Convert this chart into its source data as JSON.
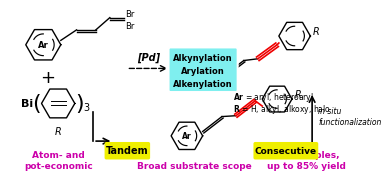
{
  "bg_color": "#ffffff",
  "cyan_box_color": "#7FEFEF",
  "yellow_highlight": "#EFEF00",
  "magenta_text": "#CC00AA",
  "red_bond": "#EE0000",
  "black": "#000000",
  "cyan_box_texts": [
    "Alkynylation",
    "Arylation",
    "Alkenylation"
  ],
  "tandem_label": "Tandem",
  "consecutive_label": "Consecutive",
  "atom_label": "Atom- and\npot-economic",
  "broad_label": "Broad substrate scope",
  "examples_label": "71 examples,\nup to 85% yield",
  "pd_label": "[Pd]",
  "ar_eq_label": "Ar = aryl, heteroaryl",
  "r_eq_label": "R = H, alkyl, alkoxy, halo",
  "in_situ_label": "in situ\nfunctionalization"
}
